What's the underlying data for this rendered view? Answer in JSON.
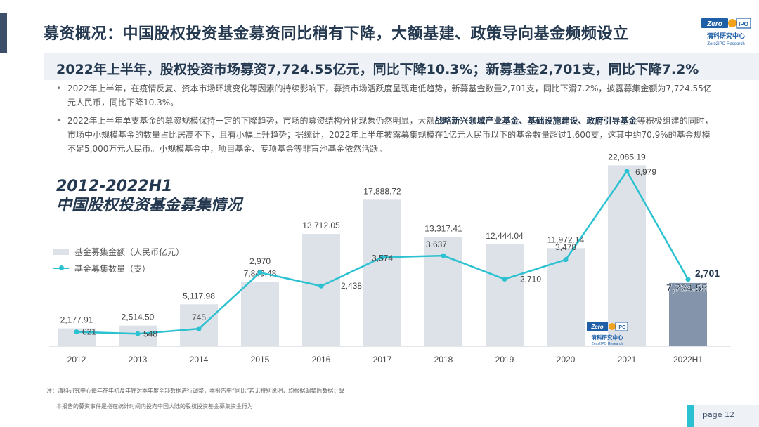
{
  "header": {
    "title": "募资概况：中国股权投资基金募资同比稍有下降，大额基建、政策导向基金频频设立",
    "logo_top": "Zero",
    "logo_ipo": "IPO",
    "logo_cn": "清科研究中心",
    "logo_en": "Zero2IPO Research"
  },
  "subtitle": "2022年上半年，股权投资市场募资7,724.55亿元，同比下降10.3%；新募基金2,701支，同比下降7.2%",
  "bullets": [
    {
      "pre": "2022年上半年，在疫情反复、资本市场环境变化等因素的持续影响下，募资市场活跃度呈现走低趋势，新募基金数量2,701支，同比下滑7.2%，披露募集金额为7,724.55亿元人民币，同比下降10.3%。",
      "bold": "",
      "post": ""
    },
    {
      "pre": "2022年上半年单支基金的募资规模保持一定的下降趋势，市场的募资结构分化现象仍然明显，大额",
      "bold": "战略新兴领域产业基金、基础设施建设、政府引导基金",
      "post": "等积极组建的同时，市场中小规模基金的数量占比居高不下，且有小幅上升趋势；据统计，2022年上半年披露募集规模在1亿元人民币以下的基金数量超过1,600支，这其中约70.9%的基金规模不足5,000万元人民币。小规模基金中，项目基金、专项基金等非盲池基金依然活跃。"
    }
  ],
  "chart_data": {
    "type": "bar+line",
    "title_line1": "2012-2022H1",
    "title_line2": "中国股权投资基金募集情况",
    "categories": [
      "2012",
      "2013",
      "2014",
      "2015",
      "2016",
      "2017",
      "2018",
      "2019",
      "2020",
      "2021",
      "2022H1"
    ],
    "series": [
      {
        "name": "基金募集金额（人民币亿元）",
        "type": "bar",
        "values": [
          2177.91,
          2514.5,
          5117.98,
          7849.48,
          13712.05,
          17888.72,
          13317.41,
          12444.04,
          11972.14,
          22085.19,
          7724.55
        ],
        "labels": [
          "2,177.91",
          "2,514.50",
          "5,117.98",
          "7,849.48",
          "13,712.05",
          "17,888.72",
          "13,317.41",
          "12,444.04",
          "11,972.14",
          "22,085.19",
          "7,724.55"
        ]
      },
      {
        "name": "基金募集数量（支）",
        "type": "line",
        "values": [
          621,
          548,
          745,
          2970,
          2438,
          3574,
          3637,
          2710,
          3478,
          6979,
          2701
        ],
        "labels": [
          "621",
          "548",
          "745",
          "2,970",
          "2,438",
          "3,574",
          "3,637",
          "2,710",
          "3,478",
          "6,979",
          "2,701"
        ]
      }
    ],
    "colors": {
      "bar": "#dde2e9",
      "bar_highlight": "#8494ab",
      "line": "#2bc1d0"
    },
    "legend_placement": "left"
  },
  "notes": {
    "note1": "注：清科研究中心每年在年初及年底对本年度全部数据进行调整，本报告中“同比”若无特别说明，均根据调整后数据计算",
    "note2": "本报告的募资事件是指在统计时间内投向中国大陆的股权投资基金募集资金行为"
  },
  "page": {
    "label": "page  12"
  }
}
